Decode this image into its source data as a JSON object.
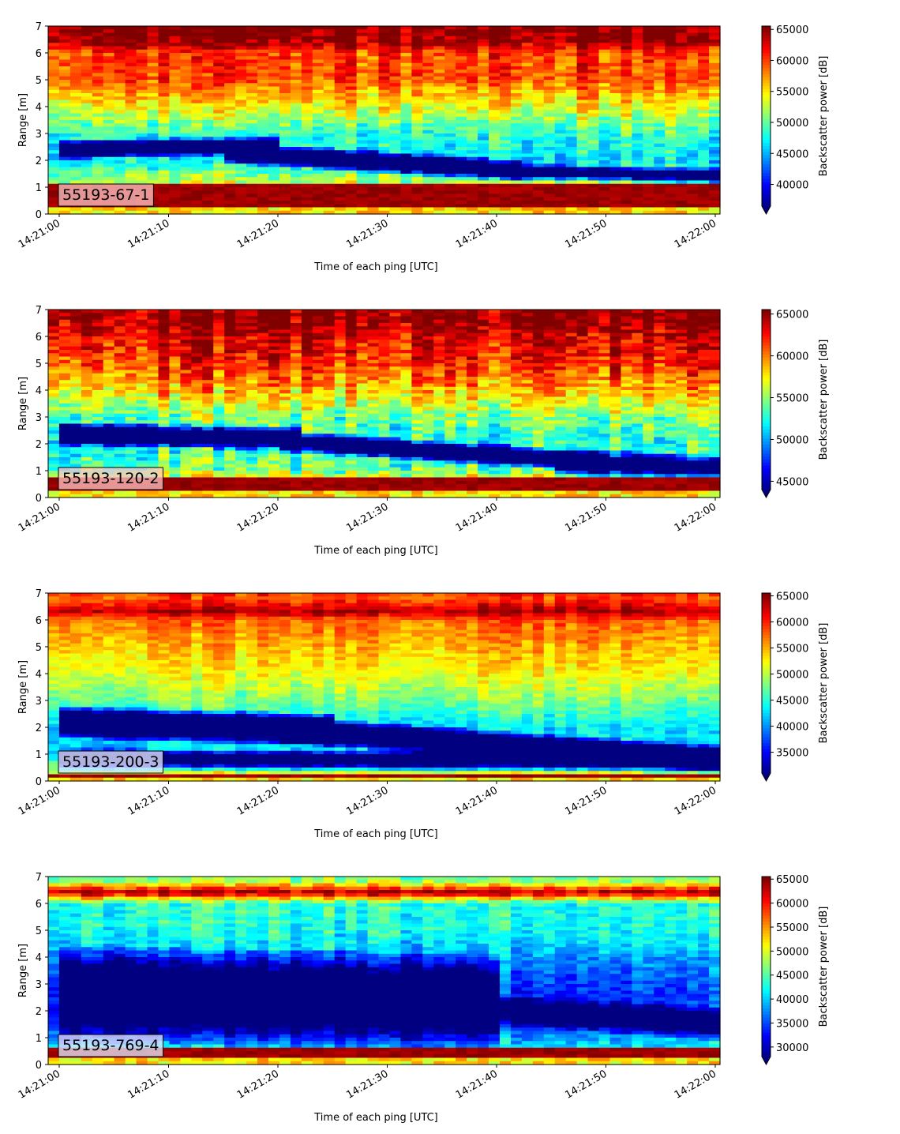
{
  "chart_data": [
    {
      "type": "heatmap",
      "label": "55193-67-1",
      "xlabel": "Time of each ping [UTC]",
      "ylabel": "Range [m]",
      "x_ticks": [
        "14:21:00",
        "14:21:10",
        "14:21:20",
        "14:21:30",
        "14:21:40",
        "14:21:50",
        "14:22:00"
      ],
      "y_ticks": [
        "0",
        "1",
        "2",
        "3",
        "4",
        "5",
        "6",
        "7"
      ],
      "ylim": [
        0,
        7
      ],
      "colorbar": {
        "label": "Backscatter power [dB]",
        "ticks": [
          "40000",
          "45000",
          "50000",
          "55000",
          "60000",
          "65000"
        ],
        "range": [
          36500,
          65535
        ],
        "extend": "min"
      },
      "profile": {
        "bottom": {
          "top_start": 1.12,
          "top_end": 1.12,
          "from": 0.22
        },
        "band": [
          {
            "center_start": 2.4,
            "center_end": 2.55,
            "halfwidth": 0.18,
            "strength": 0.9,
            "from_time": 0,
            "to_time": 20
          },
          {
            "center_start": 2.3,
            "center_end": 1.6,
            "halfwidth": 0.2,
            "strength": 0.95,
            "from_time": 15,
            "to_time": 42
          },
          {
            "center_start": 1.6,
            "center_end": 1.4,
            "halfwidth": 0.15,
            "strength": 0.8,
            "from_time": 40,
            "to_time": 61
          }
        ],
        "levels": [
          [
            0,
            0.95
          ],
          [
            1.2,
            0.55
          ],
          [
            2.0,
            0.35
          ],
          [
            3.0,
            0.42
          ],
          [
            4.0,
            0.62
          ],
          [
            5.0,
            0.8
          ],
          [
            6.0,
            0.82
          ],
          [
            6.4,
            0.98
          ],
          [
            7.0,
            1.0
          ]
        ],
        "noise": 0.16,
        "seed": 11
      }
    },
    {
      "type": "heatmap",
      "label": "55193-120-2",
      "xlabel": "Time of each ping [UTC]",
      "ylabel": "Range [m]",
      "x_ticks": [
        "14:21:00",
        "14:21:10",
        "14:21:20",
        "14:21:30",
        "14:21:40",
        "14:21:50",
        "14:22:00"
      ],
      "y_ticks": [
        "0",
        "1",
        "2",
        "3",
        "4",
        "5",
        "6",
        "7"
      ],
      "ylim": [
        0,
        7
      ],
      "colorbar": {
        "label": "Backscatter power [dB]",
        "ticks": [
          "45000",
          "50000",
          "55000",
          "60000",
          "65000"
        ],
        "range": [
          44000,
          65535
        ],
        "extend": "min"
      },
      "profile": {
        "bottom": {
          "top_start": 0.8,
          "top_end": 0.8,
          "from": 0.22
        },
        "band": [
          {
            "center_start": 2.35,
            "center_end": 2.2,
            "halfwidth": 0.22,
            "strength": 0.95,
            "from_time": 0,
            "to_time": 22
          },
          {
            "center_start": 2.1,
            "center_end": 1.3,
            "halfwidth": 0.2,
            "strength": 0.85,
            "from_time": 20,
            "to_time": 50
          },
          {
            "center_start": 1.3,
            "center_end": 1.1,
            "halfwidth": 0.25,
            "strength": 0.8,
            "from_time": 45,
            "to_time": 61
          }
        ],
        "levels": [
          [
            0,
            0.95
          ],
          [
            1.0,
            0.5
          ],
          [
            2.0,
            0.4
          ],
          [
            3.0,
            0.5
          ],
          [
            4.0,
            0.7
          ],
          [
            5.0,
            0.85
          ],
          [
            6.0,
            0.92
          ],
          [
            6.5,
            1.0
          ],
          [
            7.0,
            1.0
          ]
        ],
        "noise": 0.2,
        "seed": 23
      }
    },
    {
      "type": "heatmap",
      "label": "55193-200-3",
      "xlabel": "Time of each ping [UTC]",
      "ylabel": "Range [m]",
      "x_ticks": [
        "14:21:00",
        "14:21:10",
        "14:21:20",
        "14:21:30",
        "14:21:40",
        "14:21:50",
        "14:22:00"
      ],
      "y_ticks": [
        "0",
        "1",
        "2",
        "3",
        "4",
        "5",
        "6",
        "7"
      ],
      "ylim": [
        0,
        7
      ],
      "colorbar": {
        "label": "Backscatter power [dB]",
        "ticks": [
          "35000",
          "40000",
          "45000",
          "50000",
          "55000",
          "60000",
          "65000"
        ],
        "range": [
          31000,
          65535
        ],
        "extend": "min"
      },
      "profile": {
        "bottom": {
          "top_start": 0.3,
          "top_end": 0.3,
          "from": 0.1
        },
        "band": [
          {
            "center_start": 2.2,
            "center_end": 1.9,
            "halfwidth": 0.3,
            "strength": 0.95,
            "from_time": 0,
            "to_time": 25
          },
          {
            "center_start": 1.9,
            "center_end": 0.8,
            "halfwidth": 0.25,
            "strength": 0.9,
            "from_time": 20,
            "to_time": 61
          },
          {
            "center_start": 0.8,
            "center_end": 0.7,
            "halfwidth": 0.2,
            "strength": 0.7,
            "from_time": 0,
            "to_time": 61
          }
        ],
        "levels": [
          [
            0,
            0.7
          ],
          [
            1.0,
            0.35
          ],
          [
            2.0,
            0.35
          ],
          [
            3.0,
            0.5
          ],
          [
            4.0,
            0.62
          ],
          [
            5.0,
            0.7
          ],
          [
            6.0,
            0.78
          ],
          [
            6.3,
            0.97
          ],
          [
            6.8,
            0.8
          ],
          [
            7.0,
            0.85
          ]
        ],
        "noise": 0.11,
        "seed": 37
      }
    },
    {
      "type": "heatmap",
      "label": "55193-769-4",
      "xlabel": "Time of each ping [UTC]",
      "ylabel": "Range [m]",
      "x_ticks": [
        "14:21:00",
        "14:21:10",
        "14:21:20",
        "14:21:30",
        "14:21:40",
        "14:21:50",
        "14:22:00"
      ],
      "y_ticks": [
        "0",
        "1",
        "2",
        "3",
        "4",
        "5",
        "6",
        "7"
      ],
      "ylim": [
        0,
        7
      ],
      "colorbar": {
        "label": "Backscatter power [dB]",
        "ticks": [
          "30000",
          "35000",
          "40000",
          "45000",
          "50000",
          "55000",
          "60000",
          "65000"
        ],
        "range": [
          28000,
          65535
        ],
        "extend": "min"
      },
      "profile": {
        "bottom": {
          "top_start": 0.65,
          "top_end": 0.65,
          "from": 0.22
        },
        "band": [
          {
            "center_start": 2.6,
            "center_end": 2.3,
            "halfwidth": 0.9,
            "strength": 0.6,
            "from_time": 0,
            "to_time": 40
          },
          {
            "center_start": 2.0,
            "center_end": 1.5,
            "halfwidth": 0.3,
            "strength": 0.5,
            "from_time": 40,
            "to_time": 61
          }
        ],
        "levels": [
          [
            0,
            0.5
          ],
          [
            1.0,
            0.3
          ],
          [
            2.0,
            0.18
          ],
          [
            3.0,
            0.2
          ],
          [
            4.0,
            0.3
          ],
          [
            5.0,
            0.4
          ],
          [
            6.0,
            0.42
          ],
          [
            6.4,
            0.98
          ],
          [
            6.8,
            0.55
          ],
          [
            7.0,
            0.5
          ]
        ],
        "noise": 0.13,
        "seed": 53
      }
    }
  ]
}
